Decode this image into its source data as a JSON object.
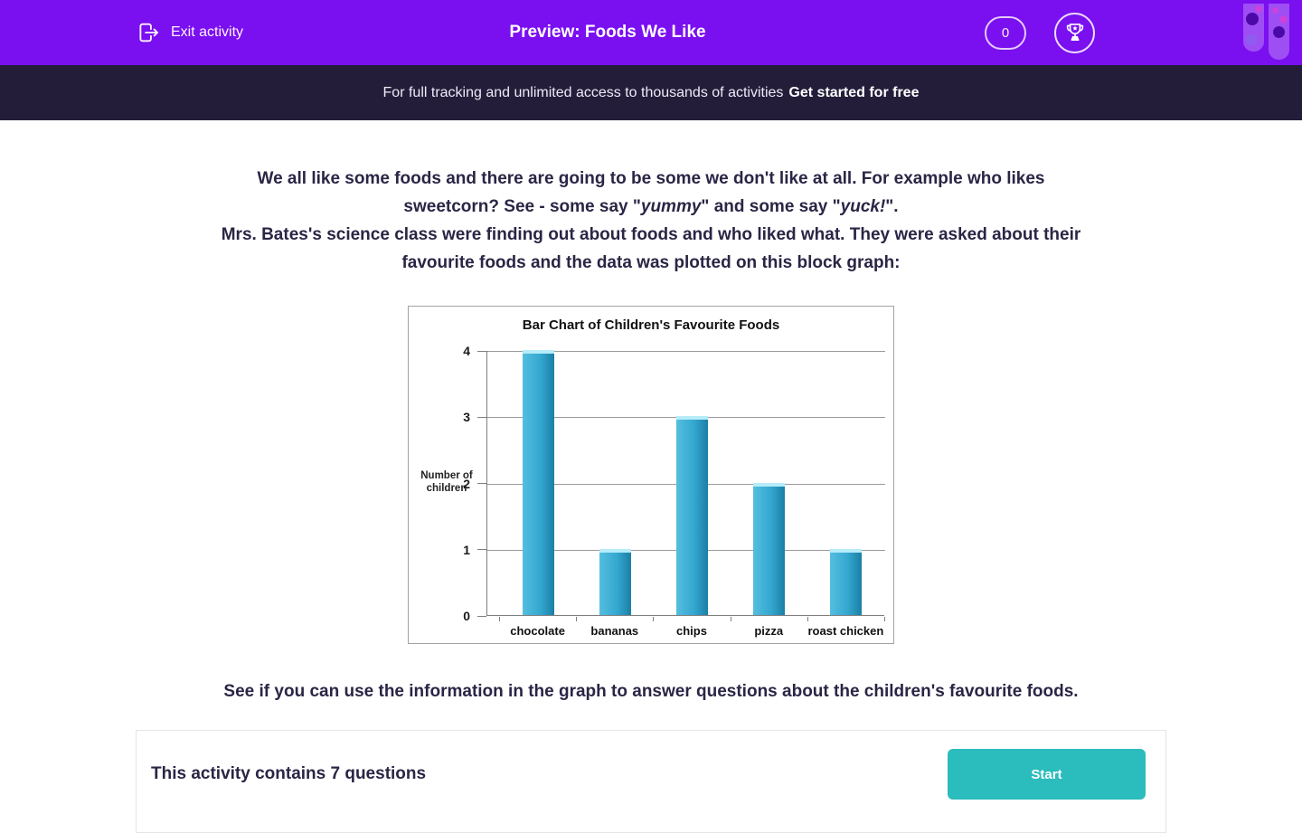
{
  "header": {
    "exit_label": "Exit activity",
    "title": "Preview: Foods We Like",
    "score": "0",
    "icons": {
      "exit": "logout-arrow-icon",
      "trophy": "trophy-icon",
      "decoration": "test-tubes-icon"
    }
  },
  "banner": {
    "text": "For full tracking and unlimited access to thousands of activities",
    "cta": "Get started for free"
  },
  "intro": {
    "line1": "We all like some foods and there are going to be some we don't like at all. For example who likes",
    "line2_pre": "sweetcorn? See - some say \"",
    "line2_italic1": "yummy",
    "line2_mid": "\" and some say \"",
    "line2_italic2": "yuck!",
    "line2_post": "\".",
    "line3": "Mrs. Bates's science class were finding out about foods and who liked what. They were asked about their",
    "line4": "favourite foods and the data was plotted on this block graph:"
  },
  "chart_data": {
    "type": "bar",
    "title": "Bar Chart of Children's Favourite Foods",
    "categories": [
      "chocolate",
      "bananas",
      "chips",
      "pizza",
      "roast chicken"
    ],
    "values": [
      4,
      1,
      3,
      2,
      1
    ],
    "ylabel": "Number of children",
    "xlabel": "",
    "ylim": [
      0,
      4
    ],
    "yticks": [
      0,
      1,
      2,
      3,
      4
    ],
    "grid": true,
    "legend": false,
    "bar_colors": {
      "light": "#54bedf",
      "main": "#35a8d1",
      "dark": "#1d82a8",
      "cap": "#b5ecf8"
    }
  },
  "outro": "See if you can use the information in the graph to answer questions about the children's favourite foods.",
  "footer": {
    "text": "This activity contains 7 questions",
    "start_label": "Start"
  },
  "colors": {
    "header_bg": "#7a0ff0",
    "banner_bg": "#231d3a",
    "accent_teal": "#2bbcbd",
    "body_text": "#2b2545",
    "bar_blue": "#35a8d1"
  }
}
